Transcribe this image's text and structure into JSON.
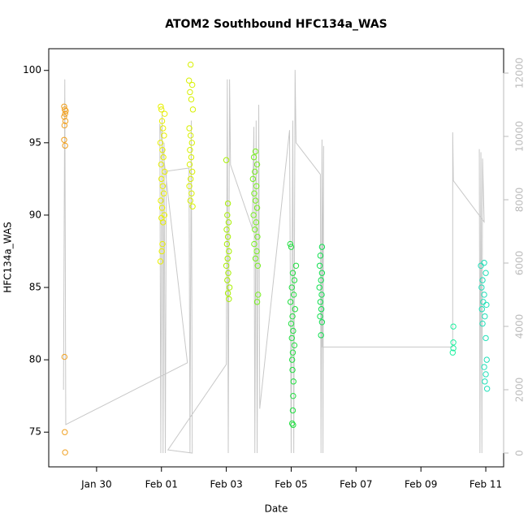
{
  "chart_data": {
    "type": "scatter",
    "title": "ATOM2 Southbound HFC134a_WAS",
    "xlabel": "Date",
    "ylabel": "HFC134a_WAS",
    "xlim": [
      28.525,
      42.55
    ],
    "xticks": [
      {
        "value": 30,
        "label": "Jan 30"
      },
      {
        "value": 32,
        "label": "Feb 01"
      },
      {
        "value": 34,
        "label": "Feb 03"
      },
      {
        "value": 36,
        "label": "Feb 05"
      },
      {
        "value": 38,
        "label": "Feb 07"
      },
      {
        "value": 40,
        "label": "Feb 09"
      },
      {
        "value": 42,
        "label": "Feb 11"
      }
    ],
    "ylim": [
      72.6,
      101.5
    ],
    "yticks": [
      75,
      80,
      85,
      90,
      95,
      100
    ],
    "y2lim": [
      -436,
      12769
    ],
    "y2ticks": [
      0,
      2000,
      4000,
      6000,
      8000,
      10000,
      12000
    ],
    "y2color": "#bbbbbb",
    "series": [
      {
        "color": "#f0a020",
        "x": [
          29.0,
          29.02,
          29.03,
          29.0,
          29.04,
          29.01,
          29.05,
          29.0,
          29.03,
          29.01,
          29.02,
          29.03
        ],
        "values": [
          97.5,
          97.3,
          97.0,
          96.8,
          96.5,
          96.2,
          97.2,
          95.2,
          94.8,
          80.2,
          75.0,
          73.6
        ]
      },
      {
        "color": "#e8f000",
        "x": [
          31.98,
          32.0,
          32.1,
          32.02,
          32.05,
          32.08,
          31.97,
          32.03,
          32.06,
          31.99,
          32.1,
          32.0,
          32.04,
          32.07,
          31.98,
          32.02,
          32.09,
          32.0,
          32.05,
          32.03,
          32.01,
          31.97
        ],
        "values": [
          97.5,
          97.3,
          97.0,
          96.5,
          96.0,
          95.5,
          95.0,
          94.5,
          94.0,
          93.5,
          93.0,
          92.5,
          92.0,
          91.5,
          91.0,
          90.5,
          90.0,
          89.8,
          89.5,
          88.0,
          87.5,
          86.8
        ]
      },
      {
        "color": "#d8f000",
        "x": [
          32.9,
          32.85,
          32.95,
          32.88,
          32.92,
          32.97,
          32.86,
          32.9,
          32.94,
          32.88,
          32.92,
          32.87,
          32.95,
          32.9,
          32.86,
          32.93,
          32.89,
          32.96
        ],
        "values": [
          100.4,
          99.3,
          99.0,
          98.5,
          98.0,
          97.3,
          96.0,
          95.5,
          95.0,
          94.5,
          94.0,
          93.5,
          93.0,
          92.5,
          92.0,
          91.5,
          91.0,
          90.6
        ]
      },
      {
        "color": "#a8f000",
        "x": [
          34.0,
          34.05,
          34.03,
          34.07,
          34.01,
          34.05,
          34.02,
          34.08,
          34.04,
          34.0,
          34.06,
          34.03,
          34.1,
          34.05,
          34.08
        ],
        "values": [
          93.8,
          90.8,
          90.0,
          89.5,
          89.0,
          88.5,
          88.0,
          87.5,
          87.0,
          86.5,
          86.0,
          85.5,
          85.0,
          84.6,
          84.2
        ]
      },
      {
        "color": "#78f020",
        "x": [
          34.9,
          34.85,
          34.95,
          34.88,
          34.82,
          34.93,
          34.86,
          34.9,
          34.95,
          34.84,
          34.92,
          34.88,
          34.96,
          34.86,
          34.94,
          34.9,
          34.97,
          34.98,
          34.95
        ],
        "values": [
          94.4,
          94.0,
          93.5,
          93.0,
          92.5,
          92.0,
          91.5,
          91.0,
          90.5,
          90.0,
          89.5,
          89.0,
          88.5,
          88.0,
          87.5,
          87.0,
          86.5,
          84.5,
          84.0
        ]
      },
      {
        "color": "#20e040",
        "x": [
          35.97,
          36.0,
          36.15,
          36.05,
          36.1,
          36.02,
          36.08,
          35.98,
          36.12,
          36.04,
          36.0,
          36.06,
          36.02,
          36.1,
          36.05,
          36.03,
          36.04,
          36.07,
          36.06,
          36.05,
          36.03,
          36.06
        ],
        "values": [
          88.0,
          87.8,
          86.5,
          86.0,
          85.5,
          85.0,
          84.5,
          84.0,
          83.5,
          83.0,
          82.5,
          82.0,
          81.5,
          81.0,
          80.5,
          80.0,
          79.3,
          78.5,
          77.5,
          76.5,
          75.6,
          75.5
        ]
      },
      {
        "color": "#10e050",
        "x": [
          36.95,
          36.9,
          36.88,
          36.95,
          36.92,
          36.87,
          36.94,
          36.9,
          36.93,
          36.89,
          36.95,
          36.92
        ],
        "values": [
          87.8,
          87.2,
          86.5,
          86.0,
          85.5,
          85.0,
          84.5,
          84.0,
          83.5,
          83.0,
          82.6,
          81.7
        ]
      },
      {
        "color": "#20f0a0",
        "x": [
          41.0,
          41.0,
          41.0,
          40.98
        ],
        "values": [
          82.3,
          81.2,
          80.8,
          80.5
        ]
      },
      {
        "color": "#20e0b8",
        "x": [
          41.95,
          41.85,
          42.0,
          41.9,
          41.87,
          41.95,
          41.92,
          42.02,
          41.88,
          41.97,
          41.9,
          42.0,
          42.03,
          41.95,
          42.0,
          41.97,
          42.04
        ],
        "values": [
          86.7,
          86.5,
          86.0,
          85.5,
          85.0,
          84.5,
          84.0,
          83.8,
          83.5,
          83.0,
          82.5,
          81.5,
          80.0,
          79.5,
          79.0,
          78.5,
          78.0
        ]
      },
      {
        "color": "#c8c8c8",
        "axis": "y2",
        "line": true,
        "x": [
          28.98,
          29.02,
          29.05,
          32.8,
          31.95,
          31.98,
          32.02,
          32.05,
          32.08,
          32.12,
          32.15,
          32.85,
          32.88,
          32.92,
          32.95,
          32.2,
          34.0,
          34.03,
          34.06,
          34.1,
          34.13,
          34.8,
          34.85,
          34.88,
          34.92,
          34.95,
          35.0,
          35.03,
          35.95,
          36.0,
          36.05,
          36.08,
          36.12,
          36.15,
          36.9,
          36.92,
          36.95,
          36.98,
          37.0,
          36.95,
          40.98,
          40.98,
          41.0,
          41.95,
          41.9,
          41.88,
          41.85,
          41.82,
          41.8
        ],
        "values": [
          2000,
          11800,
          900,
          2850,
          10400,
          0,
          10800,
          0,
          9800,
          0,
          8900,
          9000,
          0,
          10500,
          0,
          100,
          2800,
          11800,
          0,
          11800,
          9100,
          7100,
          10300,
          0,
          10500,
          0,
          11000,
          1400,
          10200,
          0,
          10500,
          0,
          12100,
          9800,
          8800,
          0,
          9900,
          0,
          9700,
          3350,
          3350,
          10130,
          8600,
          7300,
          9300,
          0,
          9500,
          0,
          9600
        ]
      }
    ]
  }
}
